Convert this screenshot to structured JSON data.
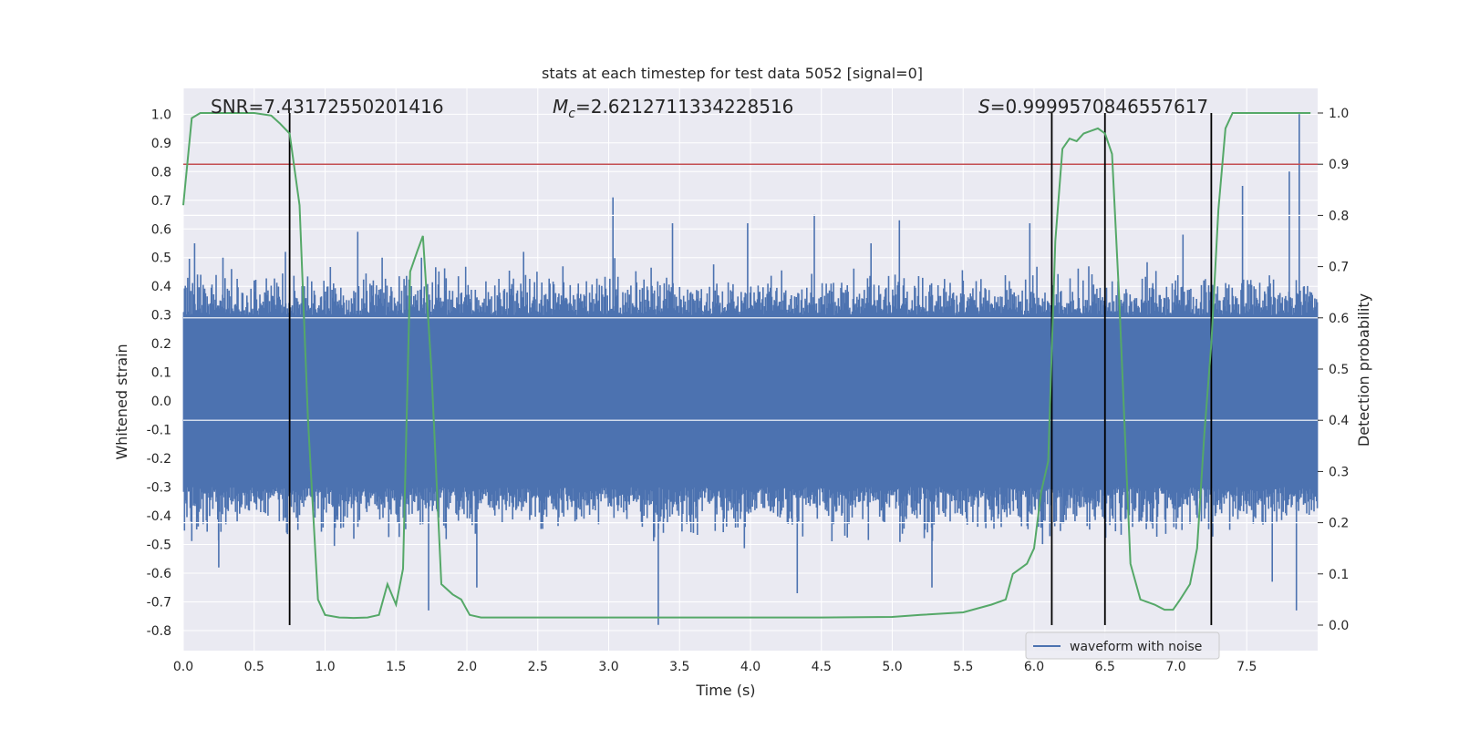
{
  "chart_data": {
    "type": "line",
    "title": "stats at each timestep for test data 5052 [signal=0]",
    "xlabel": "Time (s)",
    "ylabel_left": "Whitened strain",
    "ylabel_right": "Detection probability",
    "xlim": [
      0.0,
      8.0
    ],
    "ylim_left": [
      -0.87,
      1.09
    ],
    "ylim_right": [
      0.0,
      1.0
    ],
    "x_ticks": [
      "0.0",
      "0.5",
      "1.0",
      "1.5",
      "2.0",
      "2.5",
      "3.0",
      "3.5",
      "4.0",
      "4.5",
      "5.0",
      "5.5",
      "6.0",
      "6.5",
      "7.0",
      "7.5"
    ],
    "y_left_ticks": [
      "-0.8",
      "-0.7",
      "-0.6",
      "-0.5",
      "-0.4",
      "-0.3",
      "-0.2",
      "-0.1",
      "0.0",
      "0.1",
      "0.2",
      "0.3",
      "0.4",
      "0.5",
      "0.6",
      "0.7",
      "0.8",
      "0.9",
      "1.0"
    ],
    "y_right_ticks": [
      "0.0",
      "0.1",
      "0.2",
      "0.3",
      "0.4",
      "0.5",
      "0.6",
      "0.7",
      "0.8",
      "0.9",
      "1.0"
    ],
    "grid": true,
    "legend_position": "lower-right",
    "annotations": {
      "snr_label": "SNR=7.43172550201416",
      "mc_symbol": "M",
      "mc_subscript": "c",
      "mc_value": "=2.6212711334228516",
      "s_symbol": "S",
      "s_value": "=0.9999570846557617"
    },
    "threshold_right": 0.9,
    "vertical_markers_s": [
      0.75,
      6.125,
      6.5,
      7.25
    ],
    "series": [
      {
        "name": "waveform with noise",
        "axis": "left",
        "color": "#4c72b0",
        "style": "dense noise bars",
        "envelope_upper_typical": 0.45,
        "envelope_lower_typical": -0.5,
        "peaks": [
          {
            "x": 0.08,
            "y": 0.55
          },
          {
            "x": 0.28,
            "y": 0.5
          },
          {
            "x": 0.72,
            "y": 0.52
          },
          {
            "x": 1.23,
            "y": 0.59
          },
          {
            "x": 1.68,
            "y": 0.5
          },
          {
            "x": 2.4,
            "y": 0.52
          },
          {
            "x": 3.03,
            "y": 0.71
          },
          {
            "x": 3.45,
            "y": 0.62
          },
          {
            "x": 3.98,
            "y": 0.62
          },
          {
            "x": 4.45,
            "y": 0.65
          },
          {
            "x": 4.85,
            "y": 0.55
          },
          {
            "x": 5.05,
            "y": 0.63
          },
          {
            "x": 5.97,
            "y": 0.62
          },
          {
            "x": 7.05,
            "y": 0.58
          },
          {
            "x": 7.47,
            "y": 0.75
          },
          {
            "x": 7.8,
            "y": 0.8
          },
          {
            "x": 7.87,
            "y": 1.0
          }
        ],
        "troughs": [
          {
            "x": 0.25,
            "y": -0.58
          },
          {
            "x": 1.73,
            "y": -0.73
          },
          {
            "x": 2.07,
            "y": -0.65
          },
          {
            "x": 3.35,
            "y": -0.78
          },
          {
            "x": 4.33,
            "y": -0.67
          },
          {
            "x": 5.28,
            "y": -0.65
          },
          {
            "x": 7.68,
            "y": -0.63
          },
          {
            "x": 7.85,
            "y": -0.73
          }
        ]
      },
      {
        "name": "",
        "axis": "right",
        "color": "#55a868",
        "x": [
          0.0,
          0.06,
          0.12,
          0.25,
          0.5,
          0.62,
          0.68,
          0.75,
          0.82,
          0.88,
          0.95,
          1.0,
          1.1,
          1.2,
          1.3,
          1.38,
          1.44,
          1.5,
          1.55,
          1.6,
          1.65,
          1.69,
          1.75,
          1.82,
          1.9,
          1.96,
          2.02,
          2.1,
          2.5,
          3.0,
          3.5,
          4.0,
          4.5,
          5.0,
          5.2,
          5.5,
          5.7,
          5.8,
          5.85,
          5.9,
          5.95,
          6.0,
          6.05,
          6.1,
          6.15,
          6.2,
          6.25,
          6.3,
          6.35,
          6.4,
          6.45,
          6.5,
          6.55,
          6.6,
          6.68,
          6.75,
          6.85,
          6.92,
          6.98,
          7.03,
          7.1,
          7.15,
          7.2,
          7.25,
          7.3,
          7.35,
          7.4,
          7.45,
          7.6,
          7.8,
          7.95
        ],
        "values": [
          0.82,
          0.99,
          1.0,
          1.0,
          1.0,
          0.995,
          0.98,
          0.96,
          0.82,
          0.4,
          0.05,
          0.02,
          0.015,
          0.014,
          0.015,
          0.02,
          0.08,
          0.04,
          0.11,
          0.69,
          0.73,
          0.76,
          0.5,
          0.08,
          0.06,
          0.05,
          0.02,
          0.015,
          0.015,
          0.015,
          0.015,
          0.015,
          0.015,
          0.016,
          0.02,
          0.025,
          0.04,
          0.05,
          0.1,
          0.11,
          0.12,
          0.15,
          0.26,
          0.32,
          0.75,
          0.93,
          0.95,
          0.945,
          0.96,
          0.965,
          0.97,
          0.96,
          0.92,
          0.64,
          0.12,
          0.05,
          0.04,
          0.03,
          0.03,
          0.05,
          0.08,
          0.15,
          0.37,
          0.55,
          0.81,
          0.97,
          1.0,
          1.0,
          1.0,
          1.0,
          1.0
        ]
      }
    ]
  }
}
